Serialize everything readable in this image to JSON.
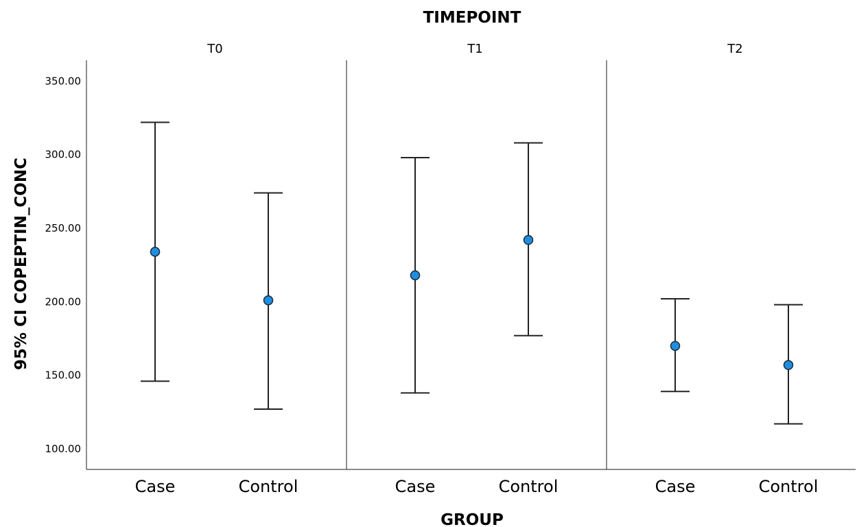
{
  "chart_data": {
    "type": "errorbar",
    "title": "TIMEPOINT",
    "xlabel": "GROUP",
    "ylabel": "95% CI COPEPTIN_CONC",
    "ylim": [
      90,
      350
    ],
    "yticks": [
      "100.00",
      "150.00",
      "200.00",
      "250.00",
      "300.00",
      "350.00"
    ],
    "categories": [
      "Case",
      "Control"
    ],
    "marker_color": "#1f8ee0",
    "panels": [
      {
        "name": "T0",
        "points": [
          {
            "group": "Case",
            "mean": 234,
            "lower": 146,
            "upper": 322
          },
          {
            "group": "Control",
            "mean": 201,
            "lower": 127,
            "upper": 274
          }
        ]
      },
      {
        "name": "T1",
        "points": [
          {
            "group": "Case",
            "mean": 218,
            "lower": 138,
            "upper": 298
          },
          {
            "group": "Control",
            "mean": 242,
            "lower": 177,
            "upper": 308
          }
        ]
      },
      {
        "name": "T2",
        "points": [
          {
            "group": "Case",
            "mean": 170,
            "lower": 139,
            "upper": 202
          },
          {
            "group": "Control",
            "mean": 157,
            "lower": 117,
            "upper": 198
          }
        ]
      }
    ]
  }
}
